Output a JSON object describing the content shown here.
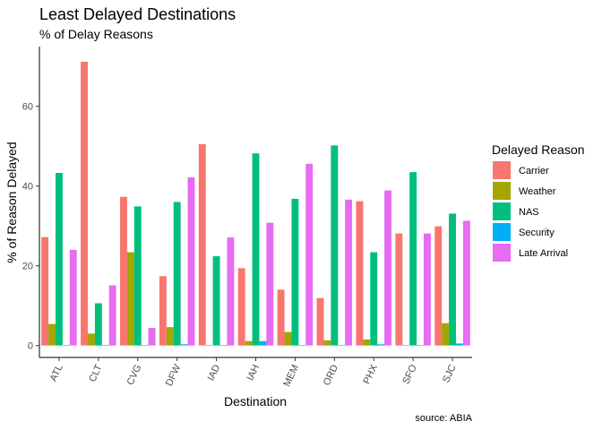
{
  "chart_data": {
    "type": "bar",
    "title": "Least Delayed Destinations",
    "subtitle": "% of Delay Reasons",
    "xlabel": "Destination",
    "ylabel": "% of Reason Delayed",
    "caption": "source: ABIA",
    "ylim": [
      -3,
      75
    ],
    "yticks": [
      0,
      20,
      40,
      60
    ],
    "grid": false,
    "legend_position": "right",
    "legend_title": "Delayed Reason",
    "categories": [
      "ATL",
      "CLT",
      "CVG",
      "DFW",
      "IAD",
      "IAH",
      "MEM",
      "ORD",
      "PHX",
      "SFO",
      "SJC"
    ],
    "series": [
      {
        "name": "Carrier",
        "color": "#F8766D",
        "values": [
          27.2,
          71.2,
          37.3,
          17.4,
          50.5,
          19.4,
          14.0,
          11.9,
          36.2,
          28.1,
          29.9
        ]
      },
      {
        "name": "Weather",
        "color": "#A3A500",
        "values": [
          5.4,
          3.0,
          23.4,
          4.6,
          0,
          1.1,
          3.4,
          1.3,
          1.5,
          0,
          5.6
        ]
      },
      {
        "name": "NAS",
        "color": "#00BF7D",
        "values": [
          43.3,
          10.6,
          34.9,
          36.0,
          22.4,
          48.2,
          36.8,
          50.2,
          23.4,
          43.5,
          33.1
        ]
      },
      {
        "name": "Security",
        "color": "#00B0F6",
        "values": [
          0,
          0,
          0,
          0.3,
          0,
          1.1,
          0,
          0,
          0.3,
          0,
          0.5
        ]
      },
      {
        "name": "Late Arrival",
        "color": "#E76BF3",
        "values": [
          24.0,
          15.1,
          4.4,
          42.2,
          27.1,
          30.8,
          45.6,
          36.6,
          38.9,
          28.1,
          31.3
        ]
      }
    ]
  }
}
